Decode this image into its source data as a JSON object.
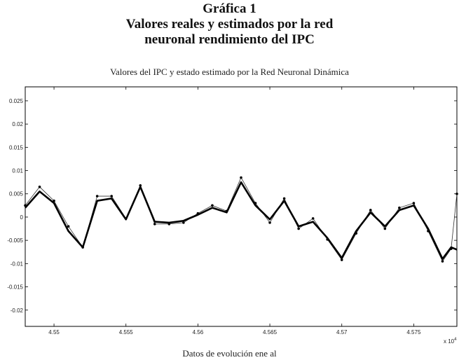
{
  "titles": {
    "line1": "Gráfica 1",
    "line2": "Valores reales y estimados por la red",
    "line3": "neuronal rendimiento del IPC"
  },
  "chart_data": {
    "type": "line",
    "title": "Valores del IPC y estado estimado por la Red Neuronal Dinámica",
    "xlabel": "Datos de evolución ene al",
    "ylabel": "",
    "x_multiplier": "x 10",
    "x_multiplier_exp": "4",
    "xlim": [
      45480,
      45780
    ],
    "ylim": [
      -0.0235,
      0.028
    ],
    "xticks": [
      45500,
      45550,
      45600,
      45650,
      45700,
      45750
    ],
    "xtick_labels": [
      "4.55",
      "4.555",
      "4.56",
      "4.565",
      "4.57",
      "4.575"
    ],
    "yticks": [
      0.025,
      0.02,
      0.015,
      0.01,
      0.005,
      0,
      -0.005,
      -0.01,
      -0.015,
      -0.02
    ],
    "ytick_labels": [
      "0.025",
      "0.02",
      "0.015",
      "0.01",
      "0.005",
      "0",
      "-0.005",
      "-0.01",
      "-0.015",
      "-0.02"
    ],
    "grid": false,
    "series": [
      {
        "role": "estimated",
        "style": "thick-line",
        "color": "#000000",
        "x": [
          45480,
          45490,
          45500,
          45510,
          45520,
          45530,
          45540,
          45550,
          45560,
          45570,
          45580,
          45590,
          45600,
          45610,
          45620,
          45630,
          45640,
          45650,
          45660,
          45670,
          45680,
          45690,
          45700,
          45710,
          45720,
          45730,
          45740,
          45750,
          45760,
          45770,
          45776,
          45780
        ],
        "y": [
          0.002,
          0.0055,
          0.003,
          -0.003,
          -0.0065,
          0.0035,
          0.004,
          -0.0005,
          0.0065,
          -0.001,
          -0.0012,
          -0.0008,
          0.0005,
          0.002,
          0.001,
          0.0075,
          0.0025,
          -0.0005,
          0.0035,
          -0.002,
          -0.001,
          -0.0045,
          -0.0088,
          -0.003,
          0.001,
          -0.002,
          0.0015,
          0.0025,
          -0.0025,
          -0.009,
          -0.0065,
          -0.007
        ]
      },
      {
        "role": "real",
        "style": "markers",
        "color": "#000000",
        "x": [
          45480,
          45490,
          45500,
          45510,
          45520,
          45530,
          45540,
          45550,
          45560,
          45570,
          45580,
          45590,
          45600,
          45610,
          45620,
          45630,
          45640,
          45650,
          45660,
          45670,
          45680,
          45690,
          45700,
          45710,
          45720,
          45730,
          45740,
          45750,
          45760,
          45770,
          45776,
          45780
        ],
        "y": [
          0.0025,
          0.0065,
          0.0035,
          -0.002,
          -0.0065,
          0.0045,
          0.0045,
          -0.0003,
          0.0068,
          -0.0015,
          -0.0015,
          -0.0012,
          0.0008,
          0.0025,
          0.0013,
          0.0085,
          0.003,
          -0.0012,
          0.004,
          -0.0025,
          -0.0003,
          -0.0048,
          -0.0092,
          -0.0035,
          0.0015,
          -0.0025,
          0.002,
          0.003,
          -0.003,
          -0.0095,
          -0.0068,
          0.005
        ]
      }
    ]
  }
}
